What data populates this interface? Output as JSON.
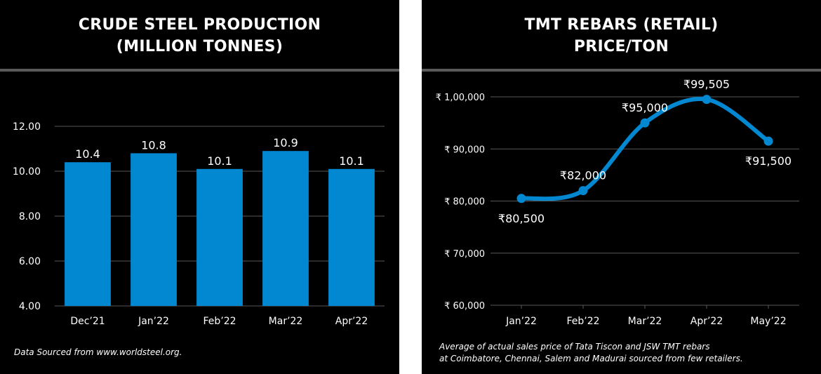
{
  "colors": {
    "background": "#000000",
    "accent": "#0288d1",
    "grid": "#595959",
    "text": "#ffffff"
  },
  "left": {
    "title_line1": "CRUDE STEEL PRODUCTION",
    "title_line2": "(MILLION TONNES)",
    "footnote": "Data Sourced from www.worldsteel.org."
  },
  "right": {
    "title_line1": "TMT REBARS (RETAIL)",
    "title_line2": "PRICE/TON",
    "footnote_line1": "Average of actual sales price of Tata Tiscon and JSW TMT rebars",
    "footnote_line2": "at Coimbatore, Chennai, Salem and Madurai sourced from few retailers."
  },
  "chart_data": [
    {
      "type": "bar",
      "title": "CRUDE STEEL PRODUCTION (MILLION TONNES)",
      "categories": [
        "Dec’21",
        "Jan’22",
        "Feb’22",
        "Mar’22",
        "Apr’22"
      ],
      "values": [
        10.4,
        10.8,
        10.1,
        10.9,
        10.1
      ],
      "value_labels": [
        "10.4",
        "10.8",
        "10.1",
        "10.9",
        "10.1"
      ],
      "ylim": [
        4,
        12
      ],
      "yticks": [
        4,
        6,
        8,
        10,
        12
      ],
      "ytick_labels": [
        "4.00",
        "6.00",
        "8.00",
        "10.00",
        "12.00"
      ],
      "grid": true,
      "legend": "none",
      "color": "#0288d1"
    },
    {
      "type": "line",
      "title": "TMT REBARS (RETAIL) PRICE/TON",
      "categories": [
        "Jan’22",
        "Feb’22",
        "Mar’22",
        "Apr’22",
        "May’22"
      ],
      "values": [
        80500,
        82000,
        95000,
        99505,
        91500
      ],
      "value_labels": [
        "₹80,500",
        "₹82,000",
        "₹95,000",
        "₹99,505",
        "₹91,500"
      ],
      "label_positions": [
        "below",
        "above",
        "above",
        "above",
        "below"
      ],
      "ylim": [
        60000,
        100000
      ],
      "yticks": [
        60000,
        70000,
        80000,
        90000,
        100000
      ],
      "ytick_labels": [
        "₹ 60,000",
        "₹ 70,000",
        "₹ 80,000",
        "₹ 90,000",
        "₹ 1,00,000"
      ],
      "grid": true,
      "smooth": true,
      "markers": true,
      "legend": "none",
      "color": "#0288d1"
    }
  ]
}
